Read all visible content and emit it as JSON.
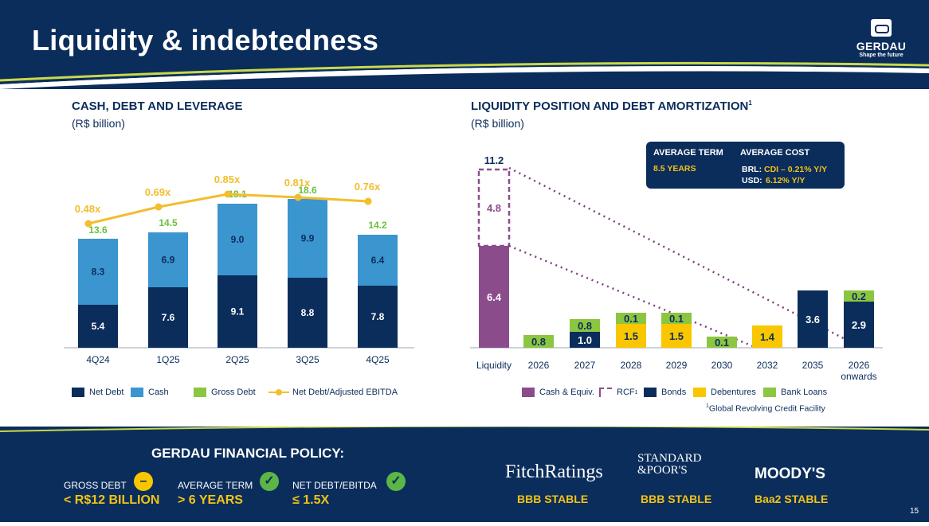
{
  "header": {
    "title": "Liquidity & indebtedness",
    "logo_name": "GERDAU",
    "logo_tagline": "Shape the future"
  },
  "left_chart": {
    "title": "CASH, DEBT AND LEVERAGE",
    "subtitle": "(R$ billion)",
    "legend": {
      "net_debt": "Net Debt",
      "cash": "Cash",
      "gross_debt": "Gross Debt",
      "ratio": "Net Debt/Adjusted EBITDA"
    }
  },
  "right_chart": {
    "title": "LIQUIDITY POSITION AND DEBT AMORTIZATION",
    "title_sup": "1",
    "subtitle": "(R$ billion)",
    "legend": {
      "cash": "Cash & Equiv.",
      "rcf": "RCF",
      "rcf_sup": "1",
      "bonds": "Bonds",
      "debentures": "Debentures",
      "bank_loans": "Bank Loans"
    },
    "footnote_sup": "1",
    "footnote": "Global Revolving Credit Facility",
    "avg_box": {
      "term_label": "AVERAGE TERM",
      "term_value": "8.5 YEARS",
      "cost_label": "AVERAGE COST",
      "brl_prefix": "BRL:",
      "brl_value": "CDI – 0.21% Y/Y",
      "usd_prefix": "USD:",
      "usd_value": "6.12% Y/Y"
    }
  },
  "colors": {
    "navy": "#0b2d5b",
    "blue": "#3b95cf",
    "green": "#8cc641",
    "yellow": "#f9c600",
    "purple": "#8b4c8c",
    "gold_line": "#f2be2d"
  },
  "chart_data": [
    {
      "type": "bar",
      "title": "CASH, DEBT AND LEVERAGE",
      "subtitle": "(R$ billion)",
      "stacked": true,
      "categories": [
        "4Q24",
        "1Q25",
        "2Q25",
        "3Q25",
        "4Q25"
      ],
      "series": [
        {
          "name": "Net Debt",
          "values": [
            5.4,
            7.6,
            9.1,
            8.8,
            7.8
          ],
          "color": "#0b2d5b"
        },
        {
          "name": "Cash",
          "values": [
            8.3,
            6.9,
            9.0,
            9.9,
            6.4
          ],
          "color": "#3b95cf"
        },
        {
          "name": "Gross Debt",
          "values": [
            13.6,
            14.5,
            18.1,
            18.6,
            14.2
          ],
          "color": "#8cc641",
          "label_only": true
        },
        {
          "name": "Net Debt/Adjusted EBITDA",
          "type": "line",
          "values": [
            0.48,
            0.69,
            0.85,
            0.81,
            0.76
          ],
          "labels": [
            "0.48x",
            "0.69x",
            "0.85x",
            "0.81x",
            "0.76x"
          ],
          "color": "#f2be2d"
        }
      ]
    },
    {
      "type": "bar",
      "title": "LIQUIDITY POSITION AND DEBT AMORTIZATION",
      "subtitle": "(R$ billion)",
      "stacked": true,
      "categories": [
        "Liquidity",
        "2026",
        "2027",
        "2028",
        "2029",
        "2030",
        "2032",
        "2035",
        "2026\nonwards"
      ],
      "category_lines": [
        [
          "Liquidity"
        ],
        [
          "2026"
        ],
        [
          "2027"
        ],
        [
          "2028"
        ],
        [
          "2029"
        ],
        [
          "2030"
        ],
        [
          "2032"
        ],
        [
          "2035"
        ],
        [
          "2026",
          "onwards"
        ]
      ],
      "liquidity_total": 11.2,
      "series": [
        {
          "name": "Cash & Equiv.",
          "values": [
            6.4,
            0,
            0,
            0,
            0,
            0,
            0,
            0,
            0
          ],
          "color": "#8b4c8c"
        },
        {
          "name": "RCF",
          "values": [
            4.8,
            0,
            0,
            0,
            0,
            0,
            0,
            0,
            0
          ],
          "color": "#8b4c8c",
          "style": "dashed"
        },
        {
          "name": "Bonds",
          "values": [
            0,
            0,
            1.0,
            0,
            0,
            0,
            0,
            3.6,
            2.9
          ],
          "color": "#0b2d5b"
        },
        {
          "name": "Debentures",
          "values": [
            0,
            0,
            0,
            1.5,
            1.5,
            0,
            1.4,
            0,
            0
          ],
          "color": "#f9c600"
        },
        {
          "name": "Bank Loans",
          "values": [
            0,
            0.8,
            0.8,
            0.1,
            0.1,
            0.1,
            0,
            0,
            0.2
          ],
          "color": "#8cc641"
        }
      ]
    }
  ],
  "policy": {
    "title": "GERDAU FINANCIAL POLICY:",
    "items": [
      {
        "label": "GROSS DEBT",
        "value": "< R$12 BILLION",
        "icon": "minus-icon",
        "icon_glyph": "–",
        "icon_color": "#f9c600"
      },
      {
        "label": "AVERAGE TERM",
        "value": "> 6 YEARS",
        "icon": "check-icon",
        "icon_glyph": "✓",
        "icon_color": "#5cb547"
      },
      {
        "label": "NET DEBT/EBITDA",
        "value": "≤ 1.5X",
        "icon": "check-icon",
        "icon_glyph": "✓",
        "icon_color": "#5cb547"
      }
    ]
  },
  "ratings": [
    {
      "agency": "FitchRatings",
      "rating": "BBB  STABLE"
    },
    {
      "agency_line1": "STANDARD",
      "agency_line2": "&POOR'S",
      "rating": "BBB  STABLE"
    },
    {
      "agency": "MOODY'S",
      "rating": "Baa2  STABLE"
    }
  ],
  "page_number": "15"
}
